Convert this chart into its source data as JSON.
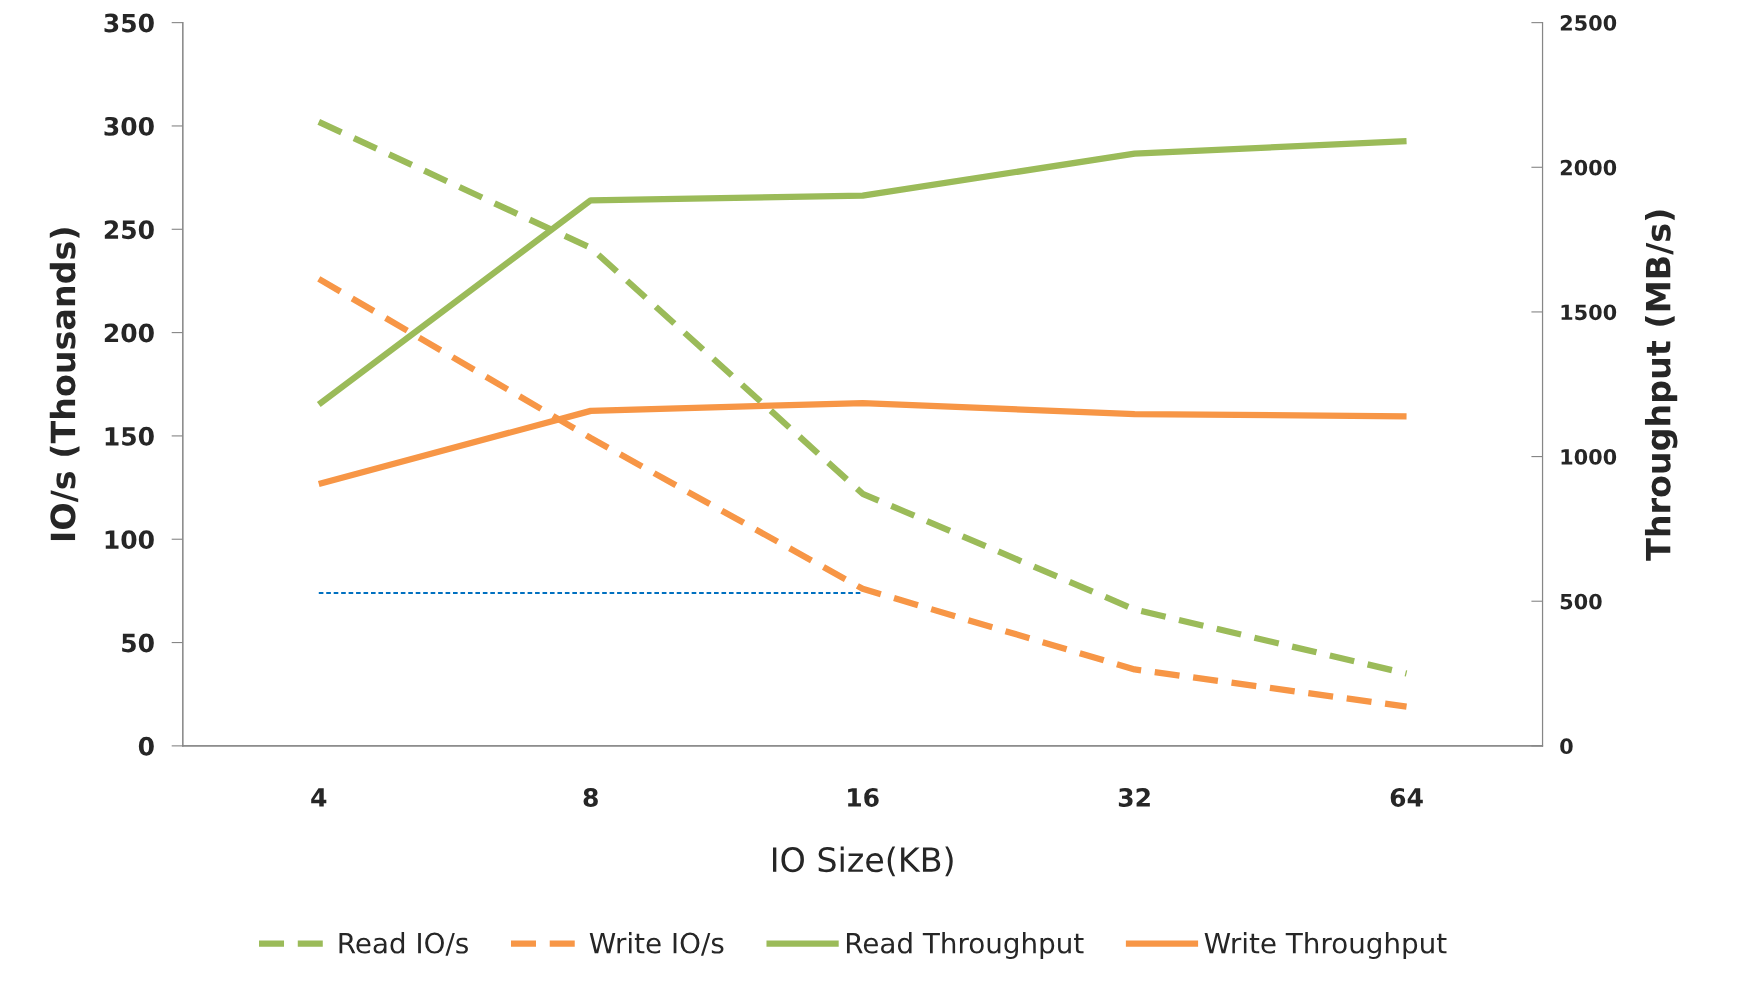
{
  "chart_data": {
    "type": "line",
    "xlabel": "IO Size(KB)",
    "ylabel": "IO/s (Thousands)",
    "y2label": "Throughput (MB/s)",
    "categories": [
      "4",
      "8",
      "16",
      "32",
      "64"
    ],
    "series": [
      {
        "name": "Read IO/s",
        "color": "#9bbb59",
        "values": [
          302,
          241,
          122,
          66,
          35
        ],
        "line_style": "dashed"
      },
      {
        "name": "Write IO/s",
        "color": "#f79646",
        "values": [
          226,
          149,
          76,
          37,
          19
        ],
        "line_style": "dashed"
      },
      {
        "name": "Read Throughput",
        "color": "#9bbb59",
        "values": [
          1180,
          1886,
          1902,
          2047,
          2090
        ],
        "axis": "y2",
        "line_style": "solid"
      },
      {
        "name": "Write Throughput",
        "color": "#f79646",
        "values": [
          905,
          1158,
          1185,
          1147,
          1139
        ],
        "axis": "y2",
        "line_style": "solid"
      },
      {
        "color": "#0070c0",
        "values": [
          74,
          74,
          74,
          null,
          null
        ],
        "line_style": "dashed"
      }
    ],
    "ylim": [
      0,
      350
    ],
    "yticks": [
      0,
      50,
      100,
      150,
      200,
      250,
      300,
      350
    ],
    "y2lim": [
      0,
      2500
    ],
    "y2ticks": [
      0,
      500,
      1000,
      1500,
      2000,
      2500
    ],
    "grid": false,
    "legend": "bottom",
    "marker": "none"
  }
}
